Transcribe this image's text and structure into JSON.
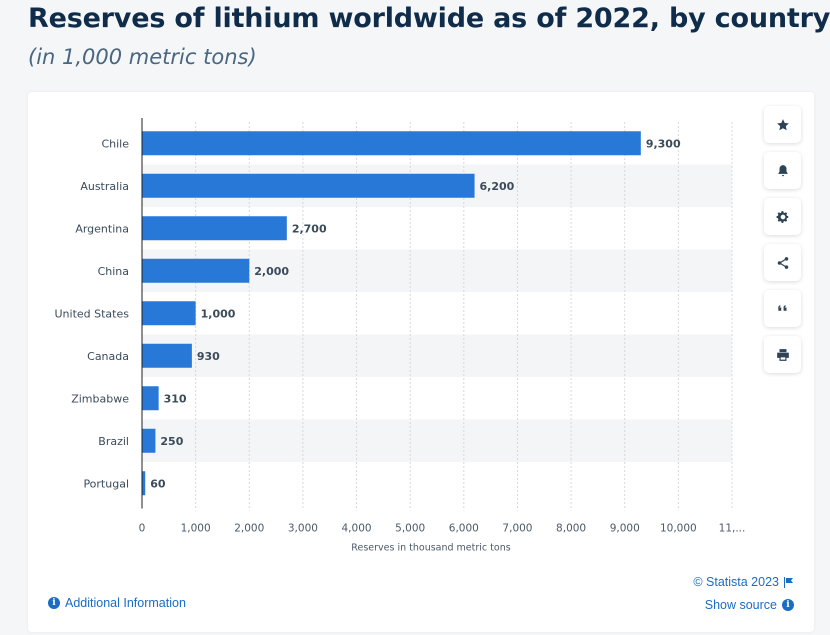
{
  "header": {
    "title": "Reserves of lithium worldwide as of 2022, by country",
    "subtitle": "(in 1,000 metric tons)"
  },
  "chart_data": {
    "type": "bar",
    "orientation": "horizontal",
    "categories": [
      "Chile",
      "Australia",
      "Argentina",
      "China",
      "United States",
      "Canada",
      "Zimbabwe",
      "Brazil",
      "Portugal"
    ],
    "values": [
      9300,
      6200,
      2700,
      2000,
      1000,
      930,
      310,
      250,
      60
    ],
    "value_labels": [
      "9,300",
      "6,200",
      "2,700",
      "2,000",
      "1,000",
      "930",
      "310",
      "250",
      "60"
    ],
    "xticks": [
      "0",
      "1,000",
      "2,000",
      "3,000",
      "4,000",
      "5,000",
      "6,000",
      "7,000",
      "8,000",
      "9,000",
      "10,000",
      "11,..."
    ],
    "xlabel": "Reserves in thousand metric tons",
    "xlim": [
      0,
      11000
    ],
    "bar_color": "#2878d8",
    "grid": true,
    "banded_rows": true
  },
  "toolbar": {
    "items": [
      {
        "name": "favorite-button",
        "icon": "star-icon",
        "glyph": "★"
      },
      {
        "name": "notification-button",
        "icon": "bell-icon",
        "glyph": "bell"
      },
      {
        "name": "settings-button",
        "icon": "gear-icon",
        "glyph": "⚙"
      },
      {
        "name": "share-button",
        "icon": "share-icon",
        "glyph": "share"
      },
      {
        "name": "cite-button",
        "icon": "quote-icon",
        "glyph": "“"
      },
      {
        "name": "print-button",
        "icon": "printer-icon",
        "glyph": "print"
      }
    ]
  },
  "footer": {
    "additional_info": "Additional Information",
    "copyright": "© Statista 2023",
    "show_source": "Show source"
  }
}
